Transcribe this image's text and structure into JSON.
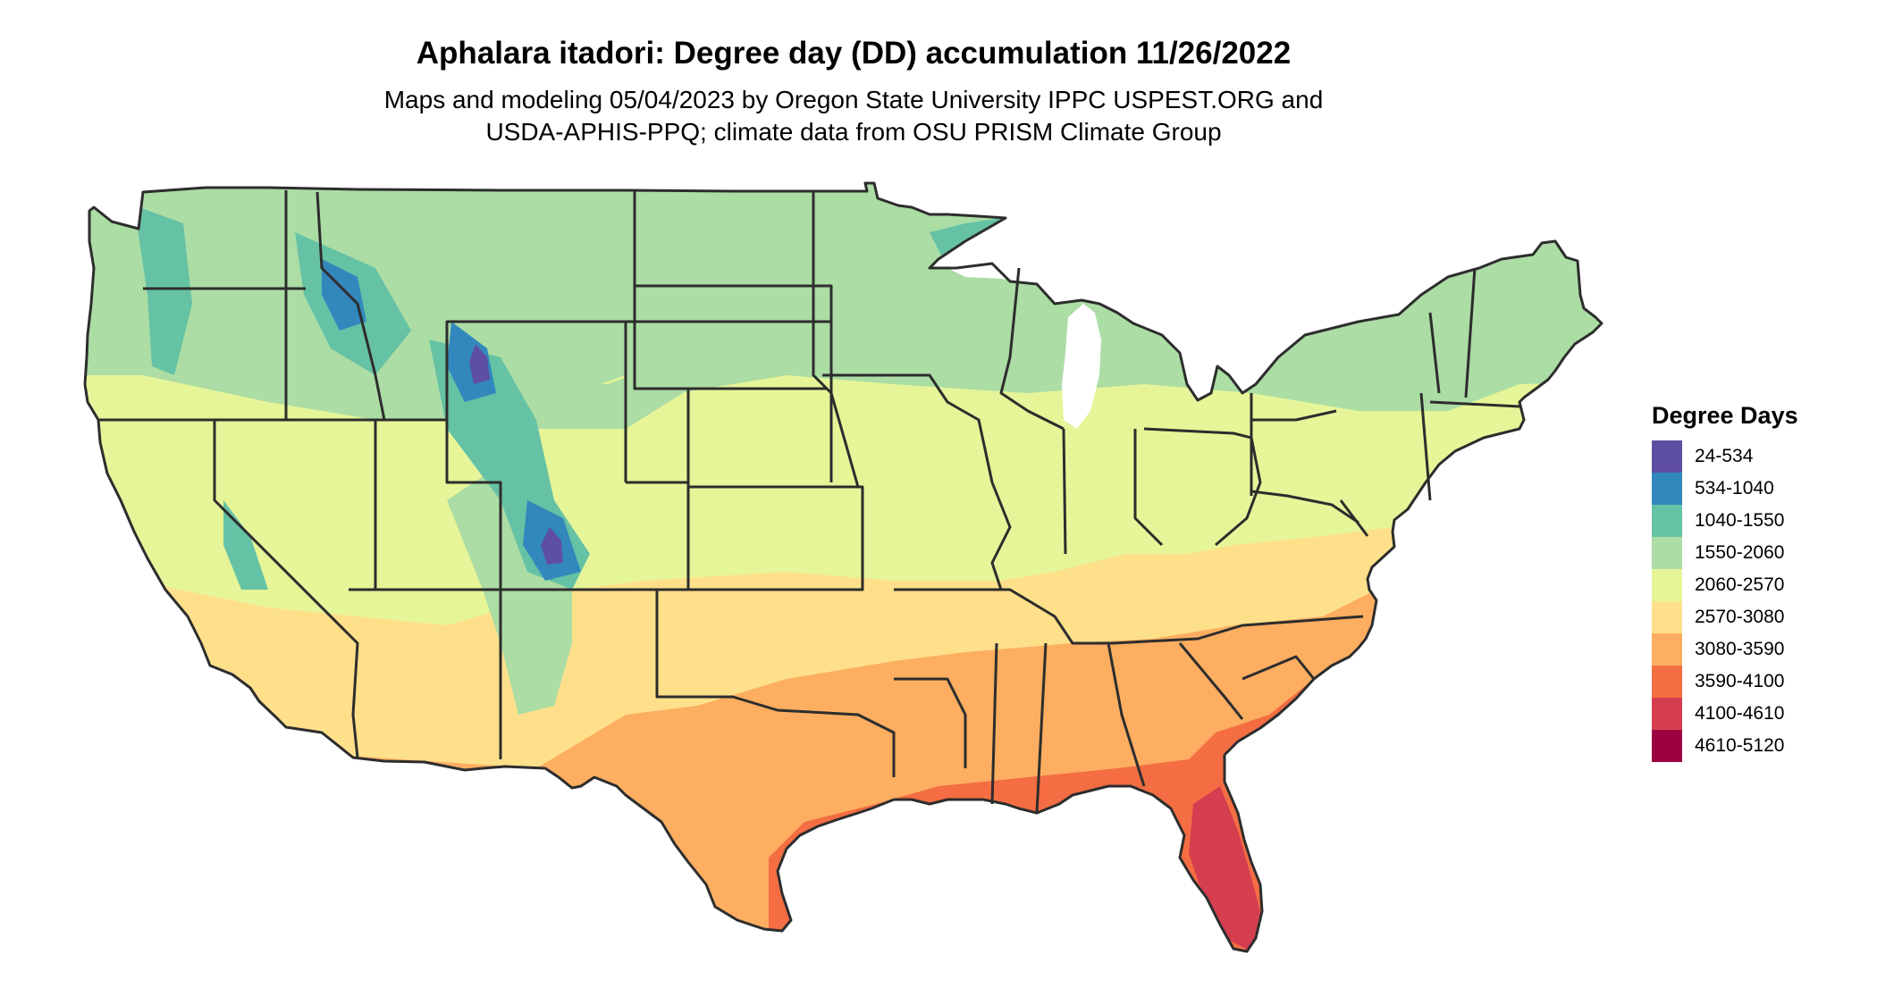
{
  "title": "Aphalara itadori: Degree day (DD) accumulation 11/26/2022",
  "subtitle": [
    "Maps and modeling 05/04/2023 by Oregon State University IPPC USPEST.ORG and",
    "USDA-APHIS-PPQ; climate data from OSU PRISM Climate Group"
  ],
  "legend": {
    "title": "Degree Days",
    "classes": [
      {
        "label": "24-534",
        "color": "#5e4fa2"
      },
      {
        "label": "534-1040",
        "color": "#3288bd"
      },
      {
        "label": "1040-1550",
        "color": "#66c2a5"
      },
      {
        "label": "1550-2060",
        "color": "#abdda4"
      },
      {
        "label": "2060-2570",
        "color": "#e6f598"
      },
      {
        "label": "2570-3080",
        "color": "#fee08b"
      },
      {
        "label": "3080-3590",
        "color": "#fdae61"
      },
      {
        "label": "3590-4100",
        "color": "#f46d43"
      },
      {
        "label": "4100-4610",
        "color": "#d53e4f"
      },
      {
        "label": "4610-5120",
        "color": "#9e0142"
      }
    ]
  }
}
